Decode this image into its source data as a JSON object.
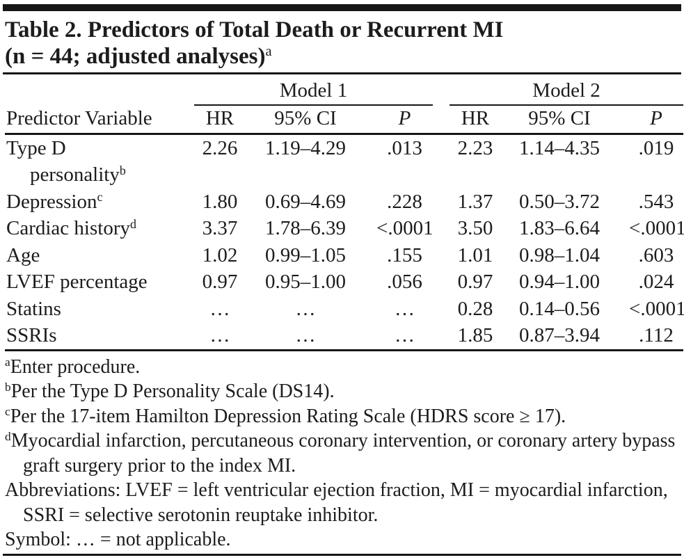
{
  "title": {
    "line1": "Table 2. Predictors of Total Death or Recurrent MI",
    "line2": "(n = 44; adjusted analyses)",
    "line2_sup": "a"
  },
  "table": {
    "col_header": "Predictor Variable",
    "model1_label": "Model 1",
    "model2_label": "Model 2",
    "sub_headers": {
      "hr": "HR",
      "ci": "95% CI",
      "p": "P"
    },
    "rows": [
      {
        "label": "Type D",
        "sup": "",
        "label2": "personality",
        "sup2": "b",
        "m1": {
          "hr": "2.26",
          "ci": "1.19–4.29",
          "p": ".013"
        },
        "m2": {
          "hr": "2.23",
          "ci": "1.14–4.35",
          "p": ".019"
        }
      },
      {
        "label": "Depression",
        "sup": "c",
        "m1": {
          "hr": "1.80",
          "ci": "0.69–4.69",
          "p": ".228"
        },
        "m2": {
          "hr": "1.37",
          "ci": "0.50–3.72",
          "p": ".543"
        }
      },
      {
        "label": "Cardiac history",
        "sup": "d",
        "m1": {
          "hr": "3.37",
          "ci": "1.78–6.39",
          "p": "<.0001"
        },
        "m2": {
          "hr": "3.50",
          "ci": "1.83–6.64",
          "p": "<.0001"
        }
      },
      {
        "label": "Age",
        "sup": "",
        "m1": {
          "hr": "1.02",
          "ci": "0.99–1.05",
          "p": ".155"
        },
        "m2": {
          "hr": "1.01",
          "ci": "0.98–1.04",
          "p": ".603"
        }
      },
      {
        "label": "LVEF percentage",
        "sup": "",
        "m1": {
          "hr": "0.97",
          "ci": "0.95–1.00",
          "p": ".056"
        },
        "m2": {
          "hr": "0.97",
          "ci": "0.94–1.00",
          "p": ".024"
        }
      },
      {
        "label": "Statins",
        "sup": "",
        "m1": {
          "hr": "…",
          "ci": "…",
          "p": "…"
        },
        "m2": {
          "hr": "0.28",
          "ci": "0.14–0.56",
          "p": "<.0001"
        }
      },
      {
        "label": "SSRIs",
        "sup": "",
        "m1": {
          "hr": "…",
          "ci": "…",
          "p": "…"
        },
        "m2": {
          "hr": "1.85",
          "ci": "0.87–3.94",
          "p": ".112"
        }
      }
    ]
  },
  "footnotes": [
    {
      "sup": "a",
      "text": "Enter procedure."
    },
    {
      "sup": "b",
      "text": "Per the Type D Personality Scale (DS14)."
    },
    {
      "sup": "c",
      "text": "Per the 17-item Hamilton Depression Rating Scale (HDRS score ≥ 17)."
    },
    {
      "sup": "d",
      "text": "Myocardial infarction, percutaneous coronary intervention, or coronary artery bypass graft surgery prior to the index MI."
    },
    {
      "sup": "",
      "text": "Abbreviations: LVEF = left ventricular ejection fraction, MI = myocardial infarction, SSRI = selective serotonin reuptake inhibitor."
    },
    {
      "sup": "",
      "text": "Symbol: … = not applicable."
    }
  ],
  "colors": {
    "text": "#1c1c1c",
    "rule": "#161616",
    "background": "#ffffff"
  }
}
